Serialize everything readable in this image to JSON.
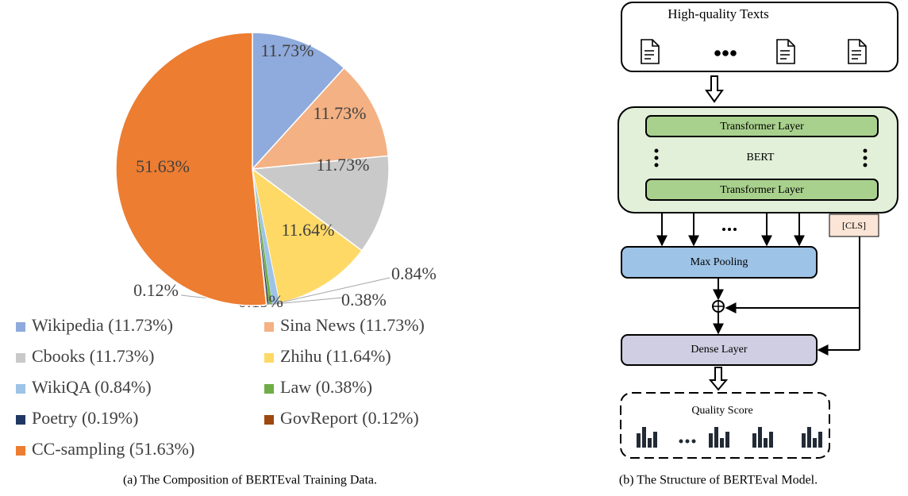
{
  "chart_data": {
    "type": "pie",
    "categories": [
      "Wikipedia (11.73%)",
      "Sina News (11.73%)",
      "Cbooks (11.73%)",
      "Zhihu (11.64%)",
      "WikiQA (0.84%)",
      "Law (0.38%)",
      "Poetry (0.19%)",
      "GovReport (0.12%)",
      "CC-sampling (51.63%)"
    ],
    "values": [
      11.73,
      11.73,
      11.73,
      11.64,
      0.84,
      0.38,
      0.19,
      0.12,
      51.63
    ],
    "value_labels": [
      "11.73%",
      "11.73%",
      "11.73%",
      "11.64%",
      "0.84%",
      "0.38%",
      "0.19%",
      "0.12%",
      "51.63%"
    ],
    "colors": [
      "#8faadc",
      "#f4b183",
      "#c9c9c9",
      "#ffd966",
      "#9dc3e6",
      "#70ad47",
      "#203864",
      "#9e480e",
      "#ed7d31"
    ],
    "legend": "bottom"
  },
  "diagram": {
    "input_title": "High-quality Texts",
    "encoder_layers": [
      "Transformer Layer",
      "Transformer Layer"
    ],
    "encoder_name": "BERT",
    "cls_token": "[CLS]",
    "pooling": "Max Pooling",
    "dense": "Dense Layer",
    "output": "Quality Score"
  },
  "captions": [
    "(a) The Composition of BERTEval Training Data.",
    "(b) The Structure of BERTEval Model."
  ]
}
